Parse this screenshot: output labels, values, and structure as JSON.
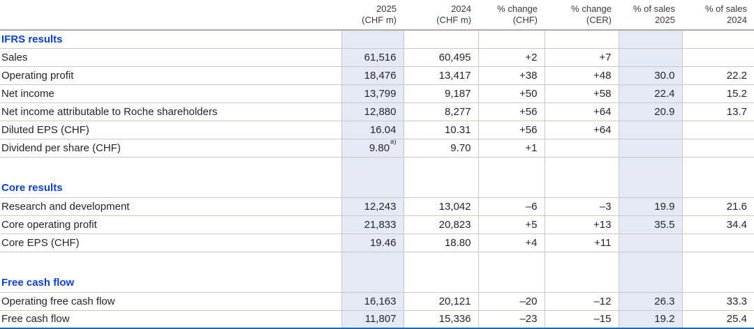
{
  "table": {
    "columns": [
      {
        "line1": "",
        "line2": ""
      },
      {
        "line1": "2025",
        "line2": "(CHF m)"
      },
      {
        "line1": "2024",
        "line2": "(CHF m)"
      },
      {
        "line1": "% change",
        "line2": "(CHF)"
      },
      {
        "line1": "% change",
        "line2": "(CER)"
      },
      {
        "line1": "% of sales",
        "line2": "2025"
      },
      {
        "line1": "% of sales",
        "line2": "2024"
      }
    ],
    "rows": [
      {
        "type": "section",
        "label": "IFRS results"
      },
      {
        "type": "data",
        "label": "Sales",
        "values": [
          "61,516",
          "60,495",
          "+2",
          "+7",
          "",
          ""
        ]
      },
      {
        "type": "data",
        "label": "Operating profit",
        "values": [
          "18,476",
          "13,417",
          "+38",
          "+48",
          "30.0",
          "22.2"
        ]
      },
      {
        "type": "data",
        "label": "Net income",
        "values": [
          "13,799",
          "9,187",
          "+50",
          "+58",
          "22.4",
          "15.2"
        ]
      },
      {
        "type": "data",
        "label": "Net income attributable to Roche shareholders",
        "values": [
          "12,880",
          "8,277",
          "+56",
          "+64",
          "20.9",
          "13.7"
        ]
      },
      {
        "type": "data",
        "label": "Diluted EPS (CHF)",
        "values": [
          "16.04",
          "10.31",
          "+56",
          "+64",
          "",
          ""
        ]
      },
      {
        "type": "data",
        "label": "Dividend per share (CHF)",
        "values": [
          "9.80",
          "9.70",
          "+1",
          "",
          "",
          ""
        ],
        "footnote_marker": "a)"
      },
      {
        "type": "spacer",
        "label": ""
      },
      {
        "type": "section",
        "label": "Core results"
      },
      {
        "type": "data",
        "label": "Research and development",
        "values": [
          "12,243",
          "13,042",
          "–6",
          "–3",
          "19.9",
          "21.6"
        ]
      },
      {
        "type": "data",
        "label": "Core operating profit",
        "values": [
          "21,833",
          "20,823",
          "+5",
          "+13",
          "35.5",
          "34.4"
        ]
      },
      {
        "type": "data",
        "label": "Core EPS (CHF)",
        "values": [
          "19.46",
          "18.80",
          "+4",
          "+11",
          "",
          ""
        ]
      },
      {
        "type": "spacer",
        "label": ""
      },
      {
        "type": "section",
        "label": "Free cash flow"
      },
      {
        "type": "data",
        "label": "Operating free cash flow",
        "values": [
          "16,163",
          "20,121",
          "–20",
          "–12",
          "26.3",
          "33.3"
        ]
      },
      {
        "type": "data",
        "label": "Free cash flow",
        "values": [
          "11,807",
          "15,336",
          "–23",
          "–15",
          "19.2",
          "25.4"
        ]
      }
    ]
  },
  "colors": {
    "section_header_blue": "#0b41cd",
    "shaded_column_bg": "#e3eaf6",
    "grid_line": "#ccc7c2",
    "header_separator": "#b1a9a2",
    "bottom_rule_blue": "#1c67b6",
    "body_text": "#252525"
  }
}
